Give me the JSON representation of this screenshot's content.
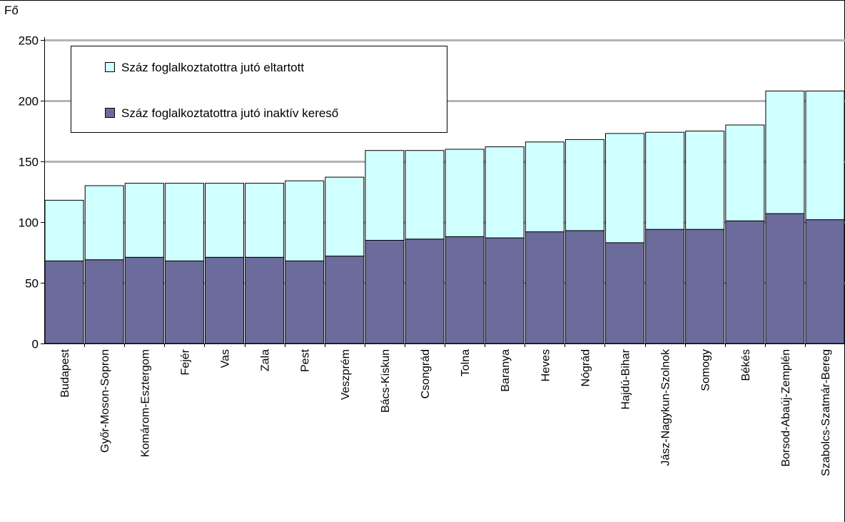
{
  "chart_data": {
    "type": "bar",
    "stacked": true,
    "ylabel": "Fő",
    "ylim": [
      0,
      250
    ],
    "yticks": [
      0,
      50,
      100,
      150,
      200,
      250
    ],
    "grid": true,
    "legend_position": "top-left",
    "categories": [
      "Budapest",
      "Győr-Moson-Sopron",
      "Komárom-Esztergom",
      "Fejér",
      "Vas",
      "Zala",
      "Pest",
      "Veszprém",
      "Bács-Kiskun",
      "Csongrád",
      "Tolna",
      "Baranya",
      "Heves",
      "Nógrád",
      "Hajdú-Bihar",
      "Jász-Nagykun-Szolnok",
      "Somogy",
      "Békés",
      "Borsod-Abaúj-Zemplén",
      "Szabolcs-Szatmár-Bereg"
    ],
    "series": [
      {
        "name": "Száz foglalkoztatottra jutó inaktív kereső",
        "color": "#6b6b9c",
        "values": [
          68,
          69,
          71,
          68,
          71,
          71,
          68,
          72,
          85,
          86,
          88,
          87,
          92,
          93,
          83,
          94,
          94,
          101,
          107,
          102
        ]
      },
      {
        "name": "Száz foglalkoztatottra jutó eltartott",
        "color": "#cfffff",
        "values": [
          50,
          61,
          61,
          64,
          61,
          61,
          66,
          65,
          74,
          73,
          72,
          75,
          74,
          75,
          90,
          80,
          81,
          79,
          101,
          106
        ]
      }
    ],
    "legend": [
      {
        "label": "Száz foglalkoztatottra jutó eltartott",
        "color": "#cfffff"
      },
      {
        "label": "Száz foglalkoztatottra jutó inaktív kereső",
        "color": "#6b6b9c"
      }
    ]
  }
}
